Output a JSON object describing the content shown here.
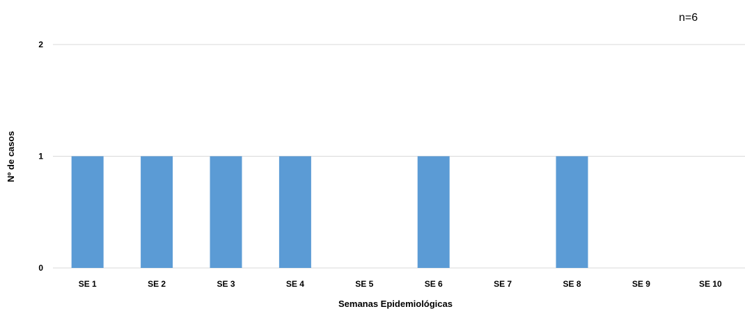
{
  "chart_data": {
    "type": "bar",
    "categories": [
      "SE 1",
      "SE 2",
      "SE 3",
      "SE 4",
      "SE 5",
      "SE 6",
      "SE 7",
      "SE 8",
      "SE 9",
      "SE 10"
    ],
    "values": [
      1,
      1,
      1,
      1,
      0,
      1,
      0,
      1,
      0,
      0
    ],
    "annotation": "n=6",
    "xlabel": "Semanas Epidemiológicas",
    "ylabel": "Nº de casos",
    "ylim": [
      0,
      2
    ],
    "yticks": [
      0,
      1,
      2
    ],
    "grid": true,
    "legend": "none",
    "bar_color": "#5B9BD5",
    "grid_color": "#D9D9D9"
  }
}
